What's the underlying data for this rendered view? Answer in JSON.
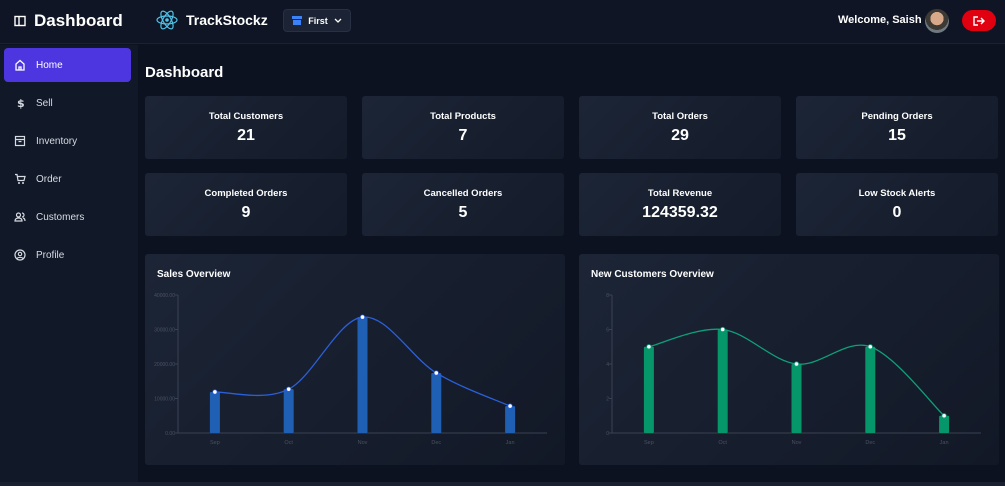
{
  "header": {
    "brand": "Dashboard",
    "app_name": "TrackStockz",
    "store_selector": "First",
    "welcome": "Welcome, Saish"
  },
  "sidebar": {
    "items": [
      {
        "label": "Home",
        "icon": "home-icon"
      },
      {
        "label": "Sell",
        "icon": "dollar-icon"
      },
      {
        "label": "Inventory",
        "icon": "archive-icon"
      },
      {
        "label": "Order",
        "icon": "cart-icon"
      },
      {
        "label": "Customers",
        "icon": "users-icon"
      },
      {
        "label": "Profile",
        "icon": "user-circle-icon"
      }
    ]
  },
  "page_title": "Dashboard",
  "stats": [
    {
      "label": "Total Customers",
      "value": "21"
    },
    {
      "label": "Total Products",
      "value": "7"
    },
    {
      "label": "Total Orders",
      "value": "29"
    },
    {
      "label": "Pending Orders",
      "value": "15"
    },
    {
      "label": "Completed Orders",
      "value": "9"
    },
    {
      "label": "Cancelled Orders",
      "value": "5"
    },
    {
      "label": "Total Revenue",
      "value": "124359.32"
    },
    {
      "label": "Low Stock Alerts",
      "value": "0"
    }
  ],
  "chart_data": [
    {
      "type": "bar",
      "title": "Sales Overview",
      "categories": [
        "Sep",
        "Oct",
        "Nov",
        "Dec",
        "Jan"
      ],
      "values": [
        11900,
        12700,
        33600,
        17400,
        7800
      ],
      "ylim": [
        0,
        40000
      ],
      "yticks": [
        "0.00",
        "10000.00",
        "20000.00",
        "30000.00",
        "40000.00"
      ],
      "color": "#1f5fb4",
      "line_color": "#2b5fd9",
      "grid": false
    },
    {
      "type": "bar",
      "title": "New Customers Overview",
      "categories": [
        "Sep",
        "Oct",
        "Nov",
        "Dec",
        "Jan"
      ],
      "values": [
        5,
        6,
        4,
        5,
        1
      ],
      "ylim": [
        0,
        8
      ],
      "yticks": [
        "0",
        "2",
        "4",
        "6",
        "8"
      ],
      "color": "#059669",
      "line_color": "#0f9f7a",
      "grid": false
    }
  ]
}
